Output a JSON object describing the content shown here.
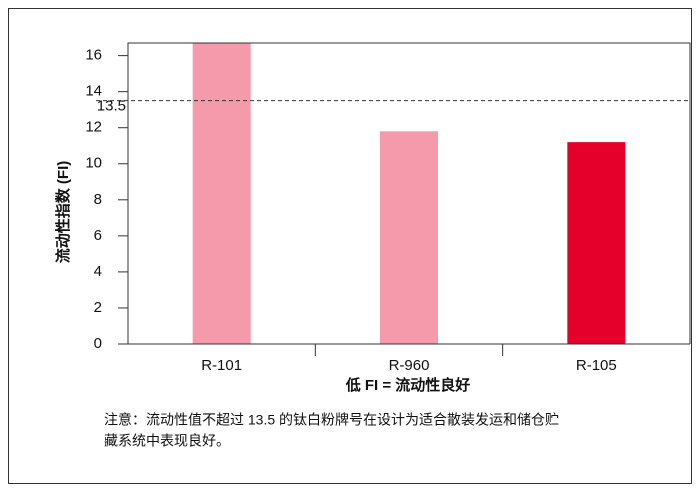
{
  "chart_data": {
    "type": "bar",
    "y_label": "流动性指数 (FI)",
    "x_label": "低 FI = 流动性良好",
    "categories": [
      "R-101",
      "R-960",
      "R-105"
    ],
    "values": [
      16.7,
      11.8,
      11.2
    ],
    "colors": [
      "#f49aab",
      "#f49aab",
      "#e4002b"
    ],
    "ylim": [
      0,
      16.7
    ],
    "yticks": [
      0,
      2,
      4,
      6,
      8,
      10,
      12,
      14,
      16
    ],
    "reference_line": {
      "value": 13.5,
      "label": "13.5"
    },
    "note_lines": [
      "注意：流动性值不超过 13.5 的钛白粉牌号在设计为适合散装发运和储仓贮",
      "藏系统中表现良好。"
    ]
  }
}
